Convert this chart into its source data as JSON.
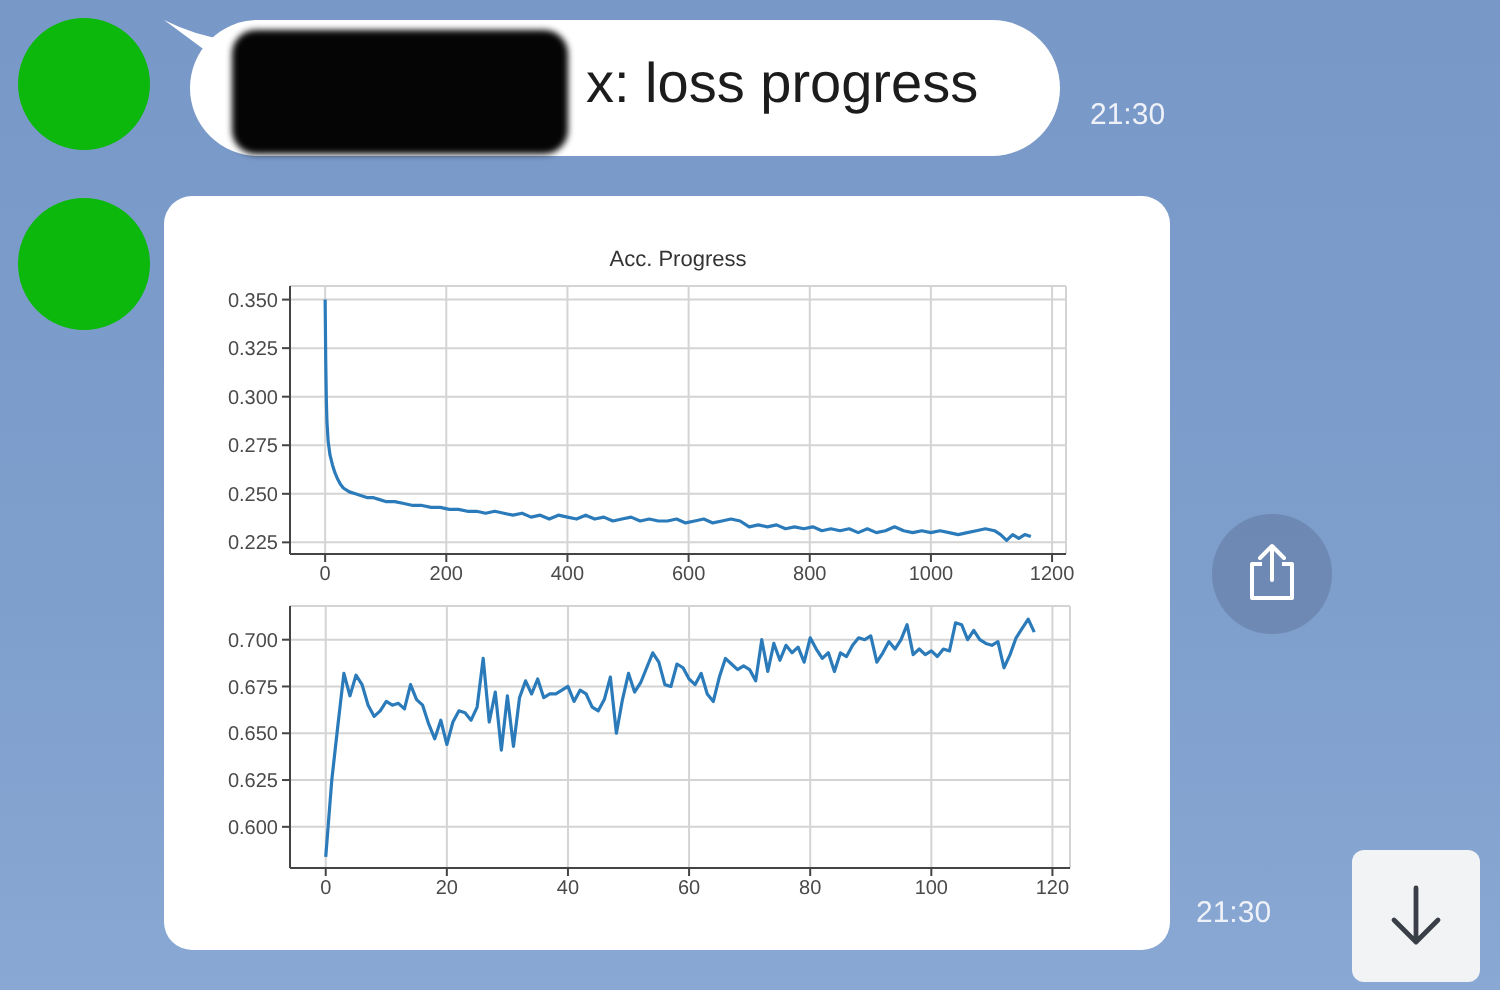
{
  "chart_data": [
    {
      "type": "line",
      "title": "Acc. Progress",
      "annotations": [
        "x: loss progress",
        "21:30"
      ],
      "x": [
        0,
        1,
        2,
        3,
        5,
        8,
        12,
        16,
        20,
        25,
        30,
        40,
        50,
        60,
        70,
        80,
        90,
        100,
        115,
        130,
        145,
        160,
        175,
        190,
        205,
        220,
        235,
        250,
        265,
        280,
        295,
        310,
        325,
        340,
        355,
        370,
        385,
        400,
        415,
        430,
        445,
        460,
        475,
        490,
        505,
        520,
        535,
        550,
        565,
        580,
        595,
        610,
        625,
        640,
        655,
        670,
        685,
        700,
        715,
        730,
        745,
        760,
        775,
        790,
        805,
        820,
        835,
        850,
        865,
        880,
        895,
        910,
        925,
        940,
        955,
        970,
        985,
        1000,
        1015,
        1030,
        1045,
        1060,
        1075,
        1090,
        1105,
        1115,
        1125,
        1135,
        1145,
        1155,
        1165
      ],
      "series": [
        {
          "color": "#2b7bba",
          "values": [
            0.35,
            0.318,
            0.298,
            0.287,
            0.277,
            0.27,
            0.265,
            0.261,
            0.258,
            0.255,
            0.253,
            0.251,
            0.25,
            0.249,
            0.248,
            0.248,
            0.247,
            0.246,
            0.246,
            0.245,
            0.244,
            0.244,
            0.243,
            0.243,
            0.242,
            0.242,
            0.241,
            0.241,
            0.24,
            0.241,
            0.24,
            0.239,
            0.24,
            0.238,
            0.239,
            0.237,
            0.239,
            0.238,
            0.237,
            0.239,
            0.237,
            0.238,
            0.236,
            0.237,
            0.238,
            0.236,
            0.237,
            0.236,
            0.236,
            0.237,
            0.235,
            0.236,
            0.237,
            0.235,
            0.236,
            0.237,
            0.236,
            0.233,
            0.234,
            0.233,
            0.234,
            0.232,
            0.233,
            0.232,
            0.233,
            0.231,
            0.232,
            0.231,
            0.232,
            0.23,
            0.232,
            0.23,
            0.231,
            0.233,
            0.231,
            0.23,
            0.231,
            0.23,
            0.231,
            0.23,
            0.229,
            0.23,
            0.231,
            0.232,
            0.231,
            0.229,
            0.226,
            0.229,
            0.227,
            0.229,
            0.228
          ]
        }
      ],
      "xlim": [
        -58,
        1223
      ],
      "xticks": [
        0,
        200,
        400,
        600,
        800,
        1000,
        1200
      ],
      "ylim": [
        0.219,
        0.357
      ],
      "yticks": [
        0.225,
        {
          "value": 0.25,
          "label": "0.250"
        },
        0.275,
        {
          "value": 0.3,
          "label": "0.300"
        },
        0.325,
        {
          "value": 0.35,
          "label": "0.350"
        }
      ],
      "grid": true
    },
    {
      "type": "line",
      "annotations": [
        "21:30"
      ],
      "x": [
        0,
        1,
        2,
        3,
        4,
        5,
        6,
        7,
        8,
        9,
        10,
        11,
        12,
        13,
        14,
        15,
        16,
        17,
        18,
        19,
        20,
        21,
        22,
        23,
        24,
        25,
        26,
        27,
        28,
        29,
        30,
        31,
        32,
        33,
        34,
        35,
        36,
        37,
        38,
        39,
        40,
        41,
        42,
        43,
        44,
        45,
        46,
        47,
        48,
        49,
        50,
        51,
        52,
        53,
        54,
        55,
        56,
        57,
        58,
        59,
        60,
        61,
        62,
        63,
        64,
        65,
        66,
        67,
        68,
        69,
        70,
        71,
        72,
        73,
        74,
        75,
        76,
        77,
        78,
        79,
        80,
        81,
        82,
        83,
        84,
        85,
        86,
        87,
        88,
        89,
        90,
        91,
        92,
        93,
        94,
        95,
        96,
        97,
        98,
        99,
        100,
        101,
        102,
        103,
        104,
        105,
        106,
        107,
        108,
        109,
        110,
        111,
        112,
        113,
        114,
        115,
        116,
        117
      ],
      "series": [
        {
          "color": "#2b7bba",
          "values": [
            0.584,
            0.625,
            0.654,
            0.682,
            0.67,
            0.681,
            0.676,
            0.665,
            0.659,
            0.662,
            0.667,
            0.665,
            0.666,
            0.663,
            0.676,
            0.668,
            0.665,
            0.655,
            0.647,
            0.657,
            0.644,
            0.656,
            0.662,
            0.661,
            0.657,
            0.664,
            0.69,
            0.656,
            0.672,
            0.641,
            0.67,
            0.643,
            0.669,
            0.678,
            0.671,
            0.679,
            0.669,
            0.671,
            0.671,
            0.673,
            0.675,
            0.667,
            0.673,
            0.671,
            0.664,
            0.662,
            0.668,
            0.68,
            0.65,
            0.668,
            0.682,
            0.672,
            0.677,
            0.685,
            0.693,
            0.688,
            0.676,
            0.675,
            0.687,
            0.685,
            0.679,
            0.676,
            0.682,
            0.671,
            0.667,
            0.68,
            0.69,
            0.687,
            0.684,
            0.686,
            0.684,
            0.678,
            0.7,
            0.683,
            0.698,
            0.689,
            0.697,
            0.693,
            0.696,
            0.688,
            0.701,
            0.695,
            0.69,
            0.693,
            0.683,
            0.693,
            0.691,
            0.697,
            0.701,
            0.7,
            0.702,
            0.688,
            0.693,
            0.699,
            0.695,
            0.7,
            0.708,
            0.692,
            0.695,
            0.692,
            0.694,
            0.691,
            0.695,
            0.694,
            0.709,
            0.708,
            0.7,
            0.705,
            0.7,
            0.698,
            0.697,
            0.699,
            0.685,
            0.692,
            0.701,
            0.706,
            0.711,
            0.704
          ]
        }
      ],
      "xlim": [
        -5.9,
        122.9
      ],
      "xticks": [
        0,
        20,
        40,
        60,
        80,
        100,
        120
      ],
      "ylim": [
        0.578,
        0.718
      ],
      "yticks": [
        {
          "value": 0.6,
          "label": "0.600"
        },
        0.625,
        {
          "value": 0.65,
          "label": "0.650"
        },
        0.675,
        {
          "value": 0.7,
          "label": "0.700"
        }
      ],
      "grid": true
    }
  ]
}
